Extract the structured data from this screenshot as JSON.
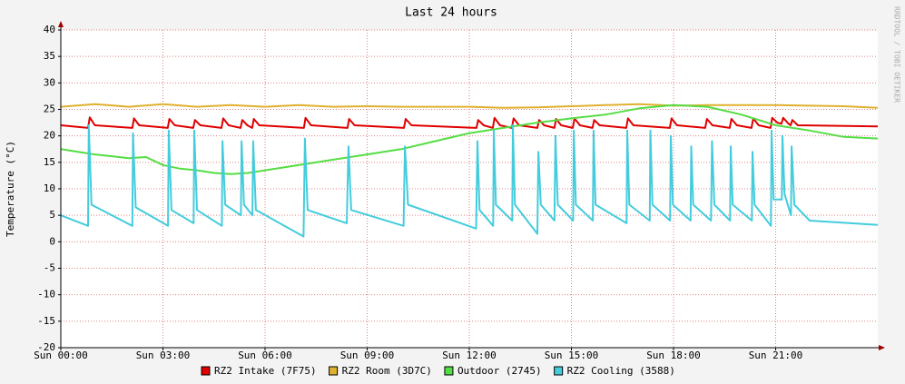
{
  "chart_data": {
    "type": "line",
    "title": "Last 24 hours",
    "y_label": "Temperature (°C)",
    "watermark": "RRDTOOL / TOBI OETIKER",
    "xlim": [
      0,
      24
    ],
    "xticks": [
      {
        "value": 0,
        "label": "Sun 00:00"
      },
      {
        "value": 3,
        "label": "Sun 03:00"
      },
      {
        "value": 6,
        "label": "Sun 06:00"
      },
      {
        "value": 9,
        "label": "Sun 09:00"
      },
      {
        "value": 12,
        "label": "Sun 12:00"
      },
      {
        "value": 15,
        "label": "Sun 15:00"
      },
      {
        "value": 18,
        "label": "Sun 18:00"
      },
      {
        "value": 21,
        "label": "Sun 21:00"
      }
    ],
    "ylim": [
      -20,
      40
    ],
    "yticks": [
      40,
      35,
      30,
      25,
      20,
      15,
      10,
      5,
      0,
      -5,
      -10,
      -15,
      -20
    ],
    "grid": true,
    "series": [
      {
        "name": "RZ2 Intake (7F75)",
        "color": "#e00000",
        "x": [
          0,
          0.8,
          0.85,
          1.0,
          2.1,
          2.15,
          2.3,
          3.14,
          3.19,
          3.35,
          3.89,
          3.94,
          4.1,
          4.72,
          4.77,
          4.93,
          5.28,
          5.33,
          5.48,
          5.62,
          5.67,
          5.83,
          7.14,
          7.19,
          7.35,
          8.42,
          8.47,
          8.63,
          10.08,
          10.13,
          10.3,
          12.21,
          12.26,
          12.42,
          12.69,
          12.74,
          12.9,
          13.25,
          13.3,
          13.46,
          14.0,
          14.05,
          14.2,
          14.5,
          14.55,
          14.7,
          15.04,
          15.09,
          15.25,
          15.62,
          15.67,
          15.83,
          16.61,
          16.66,
          16.82,
          17.89,
          17.94,
          18.1,
          18.93,
          18.98,
          19.14,
          19.65,
          19.7,
          19.86,
          20.29,
          20.34,
          20.5,
          20.85,
          20.9,
          21.05,
          21.17,
          21.22,
          21.38,
          21.44,
          21.49,
          21.65,
          24
        ],
        "values": [
          22,
          21.5,
          23.5,
          22,
          21.5,
          23.3,
          22,
          21.5,
          23.2,
          22,
          21.5,
          23,
          22,
          21.5,
          23.3,
          22,
          21.5,
          23,
          22,
          21.5,
          23.2,
          22,
          21.5,
          23.4,
          22,
          21.5,
          23.2,
          22,
          21.5,
          23.2,
          22,
          21.5,
          23,
          22,
          21.5,
          23.4,
          22,
          21.5,
          23.3,
          22,
          21.5,
          23,
          22,
          21.5,
          23.2,
          22,
          21.5,
          23.3,
          22,
          21.5,
          23,
          22,
          21.5,
          23.3,
          22,
          21.5,
          23.3,
          22,
          21.5,
          23.2,
          22,
          21.5,
          23.2,
          22,
          21.5,
          23.3,
          22,
          21.5,
          23.4,
          22.5,
          22.3,
          23.4,
          22.3,
          22,
          23,
          22,
          21.8
        ]
      },
      {
        "name": "RZ2 Room (3D7C)",
        "color": "#e0b030",
        "x": [
          0,
          1,
          2,
          3,
          4,
          5,
          6,
          7,
          8,
          9,
          10,
          11,
          12,
          13,
          14,
          15,
          16,
          17,
          18,
          19,
          20,
          21,
          22,
          23,
          24
        ],
        "values": [
          25.5,
          26,
          25.5,
          26,
          25.5,
          25.8,
          25.5,
          25.8,
          25.5,
          25.6,
          25.5,
          25.5,
          25.5,
          25.3,
          25.4,
          25.6,
          25.8,
          26,
          25.7,
          25.8,
          25.8,
          25.8,
          25.7,
          25.6,
          25.3
        ]
      },
      {
        "name": "Outdoor (2745)",
        "color": "#55dd44",
        "x": [
          0,
          0.5,
          1,
          2,
          2.5,
          3,
          3.5,
          4,
          4.5,
          5,
          5.5,
          6,
          7,
          8,
          9,
          10,
          11,
          12,
          13,
          14,
          15,
          16,
          17,
          18,
          19,
          20,
          21,
          22,
          23,
          24
        ],
        "values": [
          17.5,
          17,
          16.5,
          15.8,
          16,
          14.5,
          13.8,
          13.5,
          13,
          12.8,
          13,
          13.5,
          14.5,
          15.5,
          16.5,
          17.5,
          19,
          20.5,
          21.5,
          22.5,
          23.3,
          24,
          25.2,
          25.8,
          25.5,
          24,
          22,
          21,
          19.8,
          19.5
        ]
      },
      {
        "name": "RZ2 Cooling (3588)",
        "color": "#44ccdd",
        "x": [
          0,
          0.8,
          0.82,
          0.9,
          2.1,
          2.12,
          2.2,
          3.15,
          3.17,
          3.25,
          3.9,
          3.92,
          4.0,
          4.73,
          4.75,
          4.83,
          5.29,
          5.31,
          5.38,
          5.63,
          5.65,
          5.73,
          7.13,
          7.17,
          7.25,
          8.4,
          8.45,
          8.53,
          10.07,
          10.11,
          10.2,
          12.2,
          12.24,
          12.3,
          12.7,
          12.72,
          12.78,
          13.26,
          13.28,
          13.34,
          14.0,
          14.03,
          14.1,
          14.5,
          14.53,
          14.6,
          15.05,
          15.07,
          15.13,
          15.63,
          15.65,
          15.71,
          16.62,
          16.64,
          16.7,
          17.3,
          17.32,
          17.38,
          17.9,
          17.92,
          17.98,
          18.5,
          18.52,
          18.58,
          19.1,
          19.13,
          19.2,
          19.66,
          19.68,
          19.74,
          20.3,
          20.32,
          20.38,
          20.86,
          20.88,
          20.94,
          21.18,
          21.2,
          21.26,
          21.45,
          21.47,
          21.55,
          22,
          24
        ],
        "values": [
          5,
          3,
          22,
          7,
          3,
          20.5,
          6.5,
          3,
          21,
          6,
          3.5,
          21,
          6,
          3,
          19,
          7,
          5,
          19,
          7,
          5,
          19,
          6,
          1,
          19.5,
          6,
          3.5,
          18,
          6,
          3,
          18,
          7,
          2.5,
          19,
          6,
          3,
          21,
          7,
          4,
          22,
          7,
          1.5,
          17,
          7,
          4,
          20,
          7,
          4,
          21,
          7,
          4,
          21,
          7,
          3.5,
          21,
          7,
          4,
          21,
          7,
          4,
          20,
          7,
          4,
          18,
          7,
          4,
          19,
          7,
          4,
          18,
          7,
          4,
          17,
          7,
          3,
          21,
          8,
          8,
          20,
          9,
          5,
          18,
          7,
          4,
          3.2
        ]
      }
    ]
  }
}
